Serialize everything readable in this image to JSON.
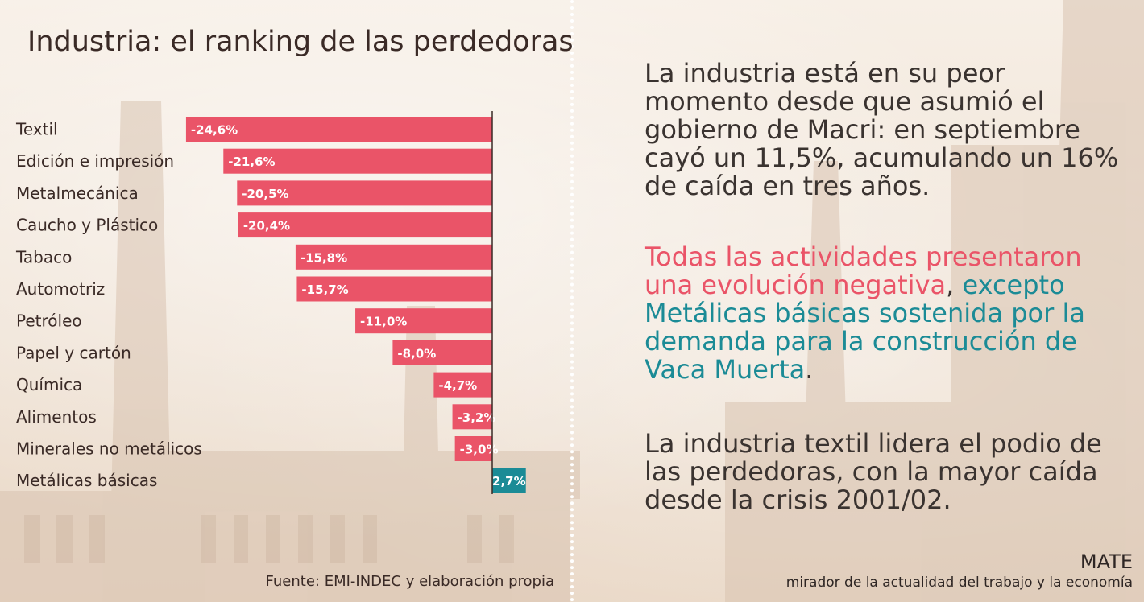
{
  "chart_data": {
    "type": "bar",
    "orientation": "horizontal",
    "title": "Industria: el ranking de las perdedoras",
    "categories": [
      "Textil",
      "Edición e impresión",
      "Metalmecánica",
      "Caucho y Plástico",
      "Tabaco",
      "Automotriz",
      "Petróleo",
      "Papel y cartón",
      "Química",
      "Alimentos",
      "Minerales no metálicos",
      "Metálicas básicas"
    ],
    "values": [
      -24.6,
      -21.6,
      -20.5,
      -20.4,
      -15.8,
      -15.7,
      -11.0,
      -8.0,
      -4.7,
      -3.2,
      -3.0,
      2.7
    ],
    "value_labels": [
      "-24,6%",
      "-21,6%",
      "-20,5%",
      "-20,4%",
      "-15,8%",
      "-15,7%",
      "-11,0%",
      "-8,0%",
      "-4,7%",
      "-3,2%",
      "-3,0%",
      "2,7%"
    ],
    "colors": {
      "negative": "#ea5468",
      "positive": "#1b8b96"
    },
    "grid": false,
    "source": "Fuente: EMI-INDEC y elaboración propia"
  },
  "text": {
    "p1": "La industria está en su peor momento desde que asumió el gobierno de Macri: en septiembre cayó un 11,5%, acumulando un 16% de caída en tres años.",
    "p2_red": "Todas las actividades presentaron una evolución negativa",
    "p2_sep": ", ",
    "p2_teal": "excepto Metálicas básicas sostenida por la demanda para la construcción de Vaca Muerta",
    "p2_end": ".",
    "p3": "La industria textil lidera el podio de las perdedoras, con la mayor caída desde la crisis 2001/02."
  },
  "footer": {
    "brand": "MATE",
    "tagline": "mirador de la actualidad del trabajo y la economía"
  }
}
